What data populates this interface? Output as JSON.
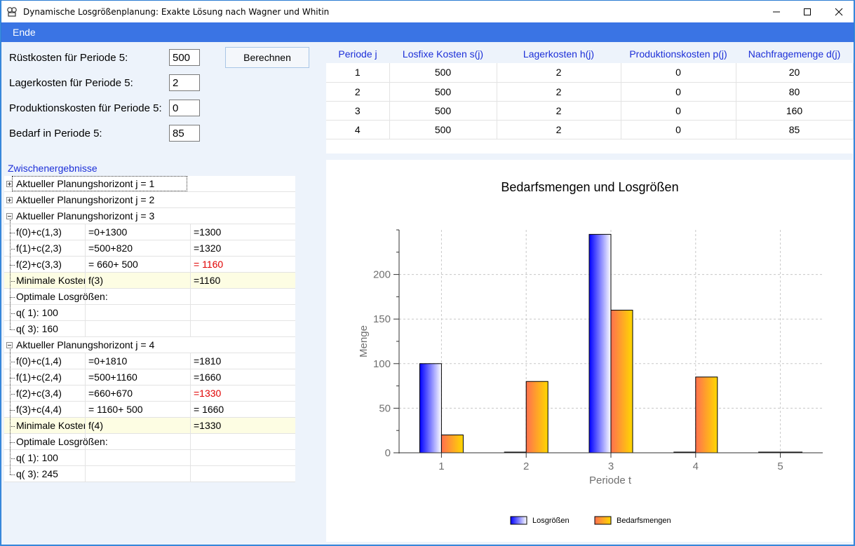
{
  "window": {
    "title": "Dynamische Losgrößenplanung: Exakte Lösung nach Wagner und Whitin",
    "icon": "app-icon",
    "controls": [
      "minimize-icon",
      "maximize-icon",
      "close-icon"
    ]
  },
  "menu": {
    "items": [
      "Ende"
    ]
  },
  "form": {
    "setup_label": "Rüstkosten für Periode 5:",
    "setup_value": "500",
    "holding_label": "Lagerkosten für Periode 5:",
    "holding_value": "2",
    "production_label": "Produktionskosten für Periode 5:",
    "production_value": "0",
    "demand_label": "Bedarf in Periode 5:",
    "demand_value": "85",
    "calculate_button": "Berechnen"
  },
  "table": {
    "columns": [
      "Periode j",
      "Losfixe Kosten s(j)",
      "Lagerkosten h(j)",
      "Produktionskosten p(j)",
      "Nachfragemenge d(j)"
    ],
    "rows": [
      [
        "1",
        "500",
        "2",
        "0",
        "20"
      ],
      [
        "2",
        "500",
        "2",
        "0",
        "80"
      ],
      [
        "3",
        "500",
        "2",
        "0",
        "160"
      ],
      [
        "4",
        "500",
        "2",
        "0",
        "85"
      ]
    ]
  },
  "tree": {
    "header": "Zwischenergebnisse",
    "rows": [
      {
        "c0": "Aktueller Planungshorizont j =  1",
        "kind": "node",
        "state": "collapsed"
      },
      {
        "c0": "Aktueller Planungshorizont j =  2",
        "kind": "node",
        "state": "collapsed"
      },
      {
        "c0": "Aktueller Planungshorizont j =  3",
        "kind": "node",
        "state": "expanded"
      },
      {
        "c0": "f(0)+c(1,3)",
        "c1": "=0+1300",
        "c2": "=1300",
        "kind": "child"
      },
      {
        "c0": "f(1)+c(2,3)",
        "c1": "=500+820",
        "c2": "=1320",
        "kind": "child"
      },
      {
        "c0": "f(2)+c(3,3)",
        "c1": "= 660+ 500",
        "c2": "= 1160",
        "kind": "child",
        "red": true
      },
      {
        "c0": "Minimale Kosten",
        "c1": "f(3)",
        "c2": "=1160",
        "kind": "child",
        "highlight": true
      },
      {
        "c0": "Optimale Losgrößen:",
        "kind": "child-wide"
      },
      {
        "c0": "q( 1):  100",
        "kind": "child"
      },
      {
        "c0": "q( 3):  160",
        "kind": "child-last"
      },
      {
        "c0": "Aktueller Planungshorizont j =  4",
        "kind": "node",
        "state": "expanded"
      },
      {
        "c0": "f(0)+c(1,4)",
        "c1": "=0+1810",
        "c2": "=1810",
        "kind": "child"
      },
      {
        "c0": "f(1)+c(2,4)",
        "c1": "=500+1160",
        "c2": "=1660",
        "kind": "child"
      },
      {
        "c0": "f(2)+c(3,4)",
        "c1": "=660+670",
        "c2": "=1330",
        "kind": "child",
        "red": true
      },
      {
        "c0": "f(3)+c(4,4)",
        "c1": "= 1160+ 500",
        "c2": "= 1660",
        "kind": "child"
      },
      {
        "c0": "Minimale Kosten",
        "c1": "f(4)",
        "c2": "=1330",
        "kind": "child",
        "highlight": true
      },
      {
        "c0": "Optimale Losgrößen:",
        "kind": "child-wide"
      },
      {
        "c0": "q( 1):  100",
        "kind": "child"
      },
      {
        "c0": "q( 3):  245",
        "kind": "child-last"
      }
    ]
  },
  "chart_data": {
    "type": "bar",
    "title": "Bedarfsmengen und Losgrößen",
    "xlabel": "Periode t",
    "ylabel": "Menge",
    "categories": [
      "1",
      "2",
      "3",
      "4",
      "5"
    ],
    "series": [
      {
        "name": "Losgrößen",
        "values": [
          100,
          0,
          245,
          0,
          0
        ],
        "gradient": [
          "#0000ff",
          "#ffffff"
        ]
      },
      {
        "name": "Bedarfsmengen",
        "values": [
          20,
          80,
          160,
          85,
          0
        ],
        "gradient": [
          "#ff7050",
          "#ffd800"
        ]
      }
    ],
    "yticks": [
      0,
      50,
      100,
      150,
      200
    ],
    "ylim": [
      0,
      250
    ],
    "grid": true,
    "legend": "bottom"
  }
}
